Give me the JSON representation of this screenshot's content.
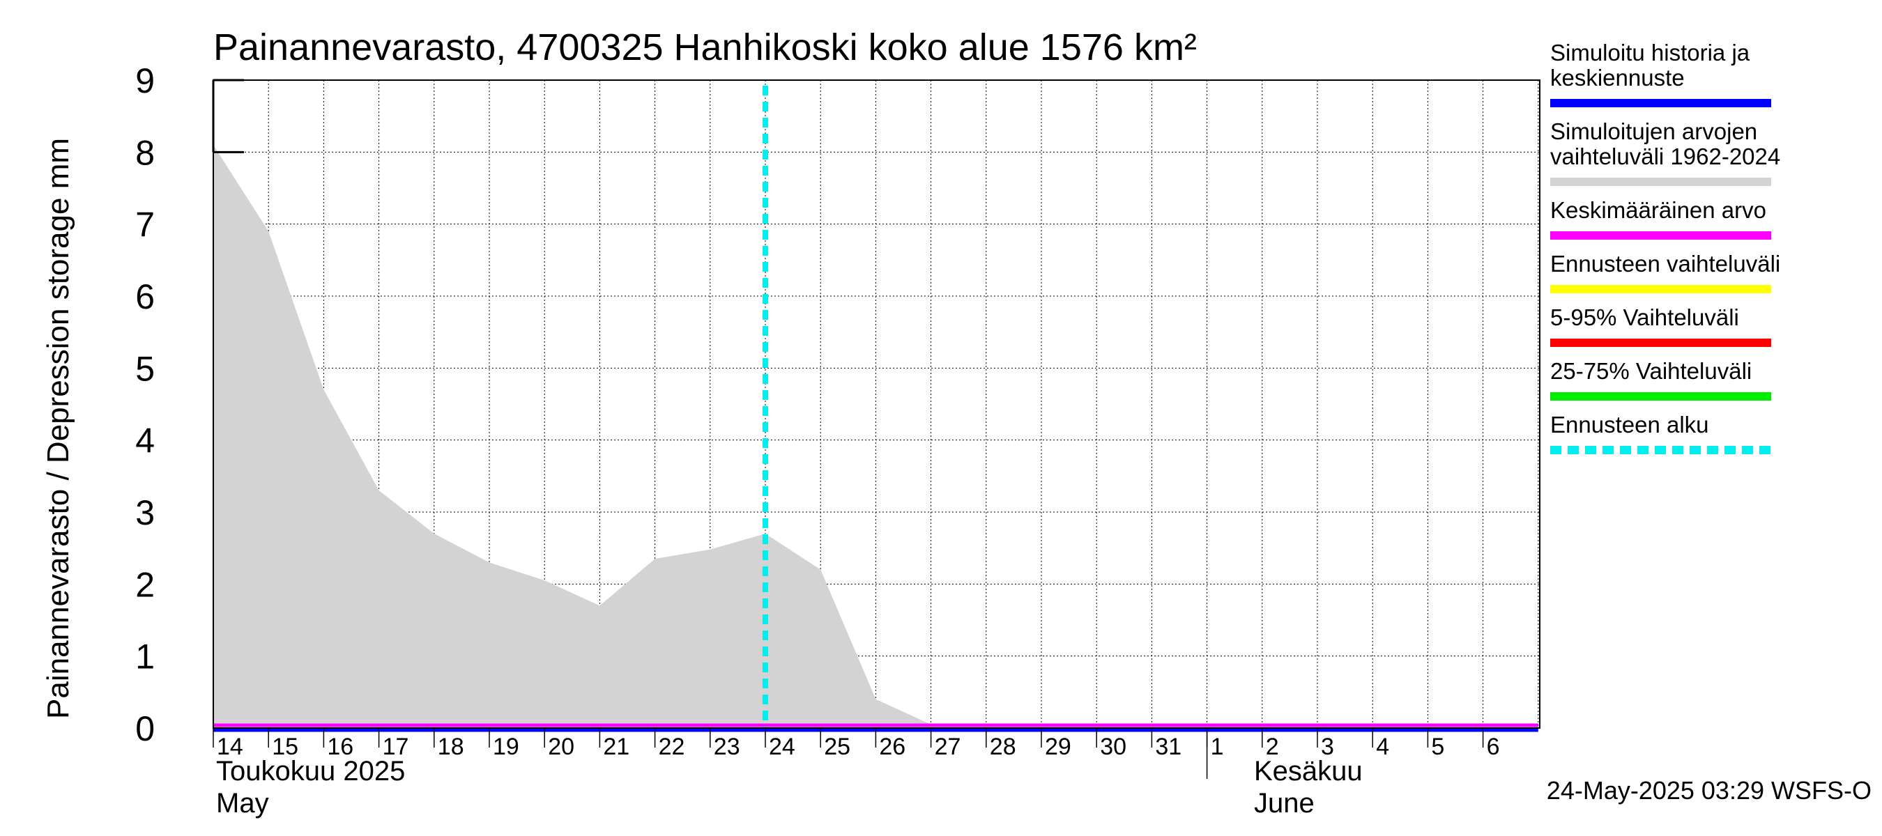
{
  "chart_data": {
    "type": "area",
    "title": "Painannevarasto, 4700325 Hanhikoski koko alue 1576 km²",
    "ylabel": "Painannevarasto / Depression storage    mm",
    "ylim": [
      0,
      9
    ],
    "yticks": [
      "0",
      "1",
      "2",
      "3",
      "4",
      "5",
      "6",
      "7",
      "8",
      "9"
    ],
    "xticks": [
      "14",
      "15",
      "16",
      "17",
      "18",
      "19",
      "20",
      "21",
      "22",
      "23",
      "24",
      "25",
      "26",
      "27",
      "28",
      "29",
      "30",
      "31",
      "1",
      "2",
      "3",
      "4",
      "5",
      "6"
    ],
    "month_labels": [
      {
        "fi": "Toukokuu  2025",
        "en": "May"
      },
      {
        "fi": "Kesäkuu",
        "en": "June"
      }
    ],
    "series": [
      {
        "name": "Simuloitujen arvojen vaihteluväli 1962-2024",
        "kind": "range",
        "color": "#d3d3d3",
        "x_days": [
          0,
          1,
          2,
          3,
          4,
          5,
          6,
          7,
          8,
          9,
          10,
          11,
          12,
          13,
          14,
          15,
          16,
          17,
          18,
          19,
          20,
          21,
          22,
          23,
          24
        ],
        "upper": [
          8.1,
          6.9,
          4.7,
          3.3,
          2.7,
          2.3,
          2.05,
          1.7,
          2.35,
          2.48,
          2.7,
          2.2,
          0.4,
          0.05,
          0.03,
          0.03,
          0.03,
          0.03,
          0.03,
          0.03,
          0.03,
          0.03,
          0.03,
          0.03,
          0.03
        ],
        "lower": [
          0,
          0,
          0,
          0,
          0,
          0,
          0,
          0,
          0,
          0,
          0,
          0,
          0,
          0,
          0,
          0,
          0,
          0,
          0,
          0,
          0,
          0,
          0,
          0,
          0
        ]
      },
      {
        "name": "Keskimääräinen arvo",
        "kind": "line",
        "color": "#ff00ff",
        "x_days": [
          0,
          24
        ],
        "values": [
          0.01,
          0.01
        ]
      },
      {
        "name": "Simuloitu historia ja keskiennuste",
        "kind": "line",
        "color": "#0000ff",
        "x_days": [
          0,
          24
        ],
        "values": [
          0.0,
          0.0
        ]
      }
    ],
    "forecast_start_day": 10,
    "legend": [
      {
        "label": "Simuloitu historia ja\nkeskiennuste",
        "color": "#0000ff",
        "style": "solid"
      },
      {
        "label": "Simuloitujen arvojen\nvaihteluväli 1962-2024",
        "color": "#d3d3d3",
        "style": "solid"
      },
      {
        "label": "Keskimääräinen arvo",
        "color": "#ff00ff",
        "style": "solid"
      },
      {
        "label": "Ennusteen vaihteluväli",
        "color": "#ffff00",
        "style": "solid"
      },
      {
        "label": "5-95% Vaihteluväli",
        "color": "#ff0000",
        "style": "solid"
      },
      {
        "label": "25-75% Vaihteluväli",
        "color": "#00ee00",
        "style": "solid"
      },
      {
        "label": "Ennusteen alku",
        "color": "#00eeee",
        "style": "dashed"
      }
    ],
    "footer": "24-May-2025 03:29 WSFS-O"
  }
}
